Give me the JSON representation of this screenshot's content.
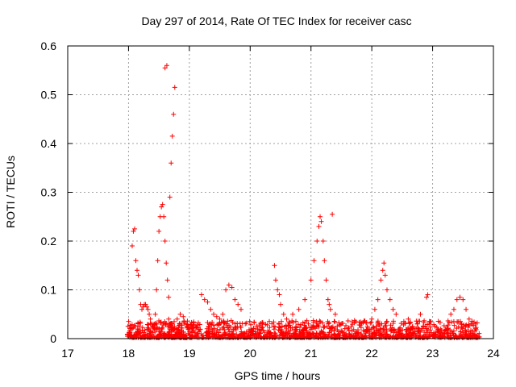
{
  "chart_data": {
    "type": "scatter",
    "title": "Day 297 of 2014, Rate Of TEC Index for receiver casc",
    "xlabel": "GPS time / hours",
    "ylabel": "ROTI / TECUs",
    "xlim": [
      17,
      24
    ],
    "ylim": [
      0,
      0.6
    ],
    "xticks": [
      "17",
      "18",
      "19",
      "20",
      "21",
      "22",
      "23",
      "24"
    ],
    "yticks": [
      "0",
      "0.1",
      "0.2",
      "0.3",
      "0.4",
      "0.5",
      "0.6"
    ],
    "grid": true,
    "marker": "plus",
    "color": "#ff0000",
    "series": [
      {
        "name": "ROTI",
        "x": [
          18.06,
          18.08,
          18.1,
          18.12,
          18.14,
          18.16,
          18.18,
          18.2,
          18.22,
          18.24,
          18.26,
          18.28,
          18.3,
          18.32,
          18.34,
          18.36,
          18.38,
          18.4,
          18.42,
          18.44,
          18.46,
          18.48,
          18.5,
          18.52,
          18.54,
          18.56,
          18.58,
          18.6,
          18.62,
          18.64,
          18.66,
          18.68,
          18.7,
          18.72,
          18.74,
          18.76,
          18.6,
          18.63,
          18.66,
          18.69,
          18.72,
          18.75,
          18.8,
          18.85,
          18.9,
          18.95,
          19.0,
          19.2,
          19.25,
          19.3,
          19.35,
          19.4,
          19.45,
          19.5,
          19.55,
          19.6,
          19.65,
          19.7,
          19.75,
          19.8,
          19.85,
          20.4,
          20.42,
          20.45,
          20.48,
          20.5,
          20.55,
          20.6,
          20.7,
          20.8,
          20.9,
          21.0,
          21.05,
          21.1,
          21.13,
          21.15,
          21.17,
          21.2,
          21.22,
          21.25,
          21.28,
          21.3,
          21.32,
          21.35,
          21.4,
          22.0,
          22.05,
          22.1,
          22.15,
          22.18,
          22.2,
          22.22,
          22.25,
          22.3,
          22.35,
          22.4,
          22.6,
          22.8,
          22.9,
          22.92,
          23.3,
          23.35,
          23.4,
          23.45,
          23.5,
          23.55,
          23.6,
          23.65,
          23.7
        ],
        "y": [
          0.19,
          0.22,
          0.225,
          0.16,
          0.14,
          0.13,
          0.1,
          0.07,
          0.06,
          0.065,
          0.07,
          0.07,
          0.065,
          0.06,
          0.05,
          0.04,
          0.03,
          0.025,
          0.03,
          0.05,
          0.1,
          0.16,
          0.22,
          0.25,
          0.27,
          0.275,
          0.25,
          0.2,
          0.155,
          0.12,
          0.085,
          0.29,
          0.36,
          0.415,
          0.46,
          0.515,
          0.555,
          0.56,
          0.04,
          0.03,
          0.03,
          0.035,
          0.04,
          0.05,
          0.045,
          0.03,
          0.02,
          0.09,
          0.08,
          0.075,
          0.06,
          0.05,
          0.045,
          0.04,
          0.05,
          0.1,
          0.11,
          0.105,
          0.08,
          0.07,
          0.06,
          0.15,
          0.12,
          0.1,
          0.09,
          0.07,
          0.05,
          0.04,
          0.05,
          0.06,
          0.08,
          0.12,
          0.16,
          0.2,
          0.23,
          0.25,
          0.24,
          0.2,
          0.16,
          0.12,
          0.08,
          0.07,
          0.06,
          0.255,
          0.05,
          0.04,
          0.06,
          0.08,
          0.12,
          0.14,
          0.155,
          0.13,
          0.1,
          0.08,
          0.06,
          0.05,
          0.04,
          0.05,
          0.085,
          0.09,
          0.05,
          0.06,
          0.08,
          0.085,
          0.08,
          0.06,
          0.04,
          0.03,
          0.03
        ]
      }
    ]
  }
}
